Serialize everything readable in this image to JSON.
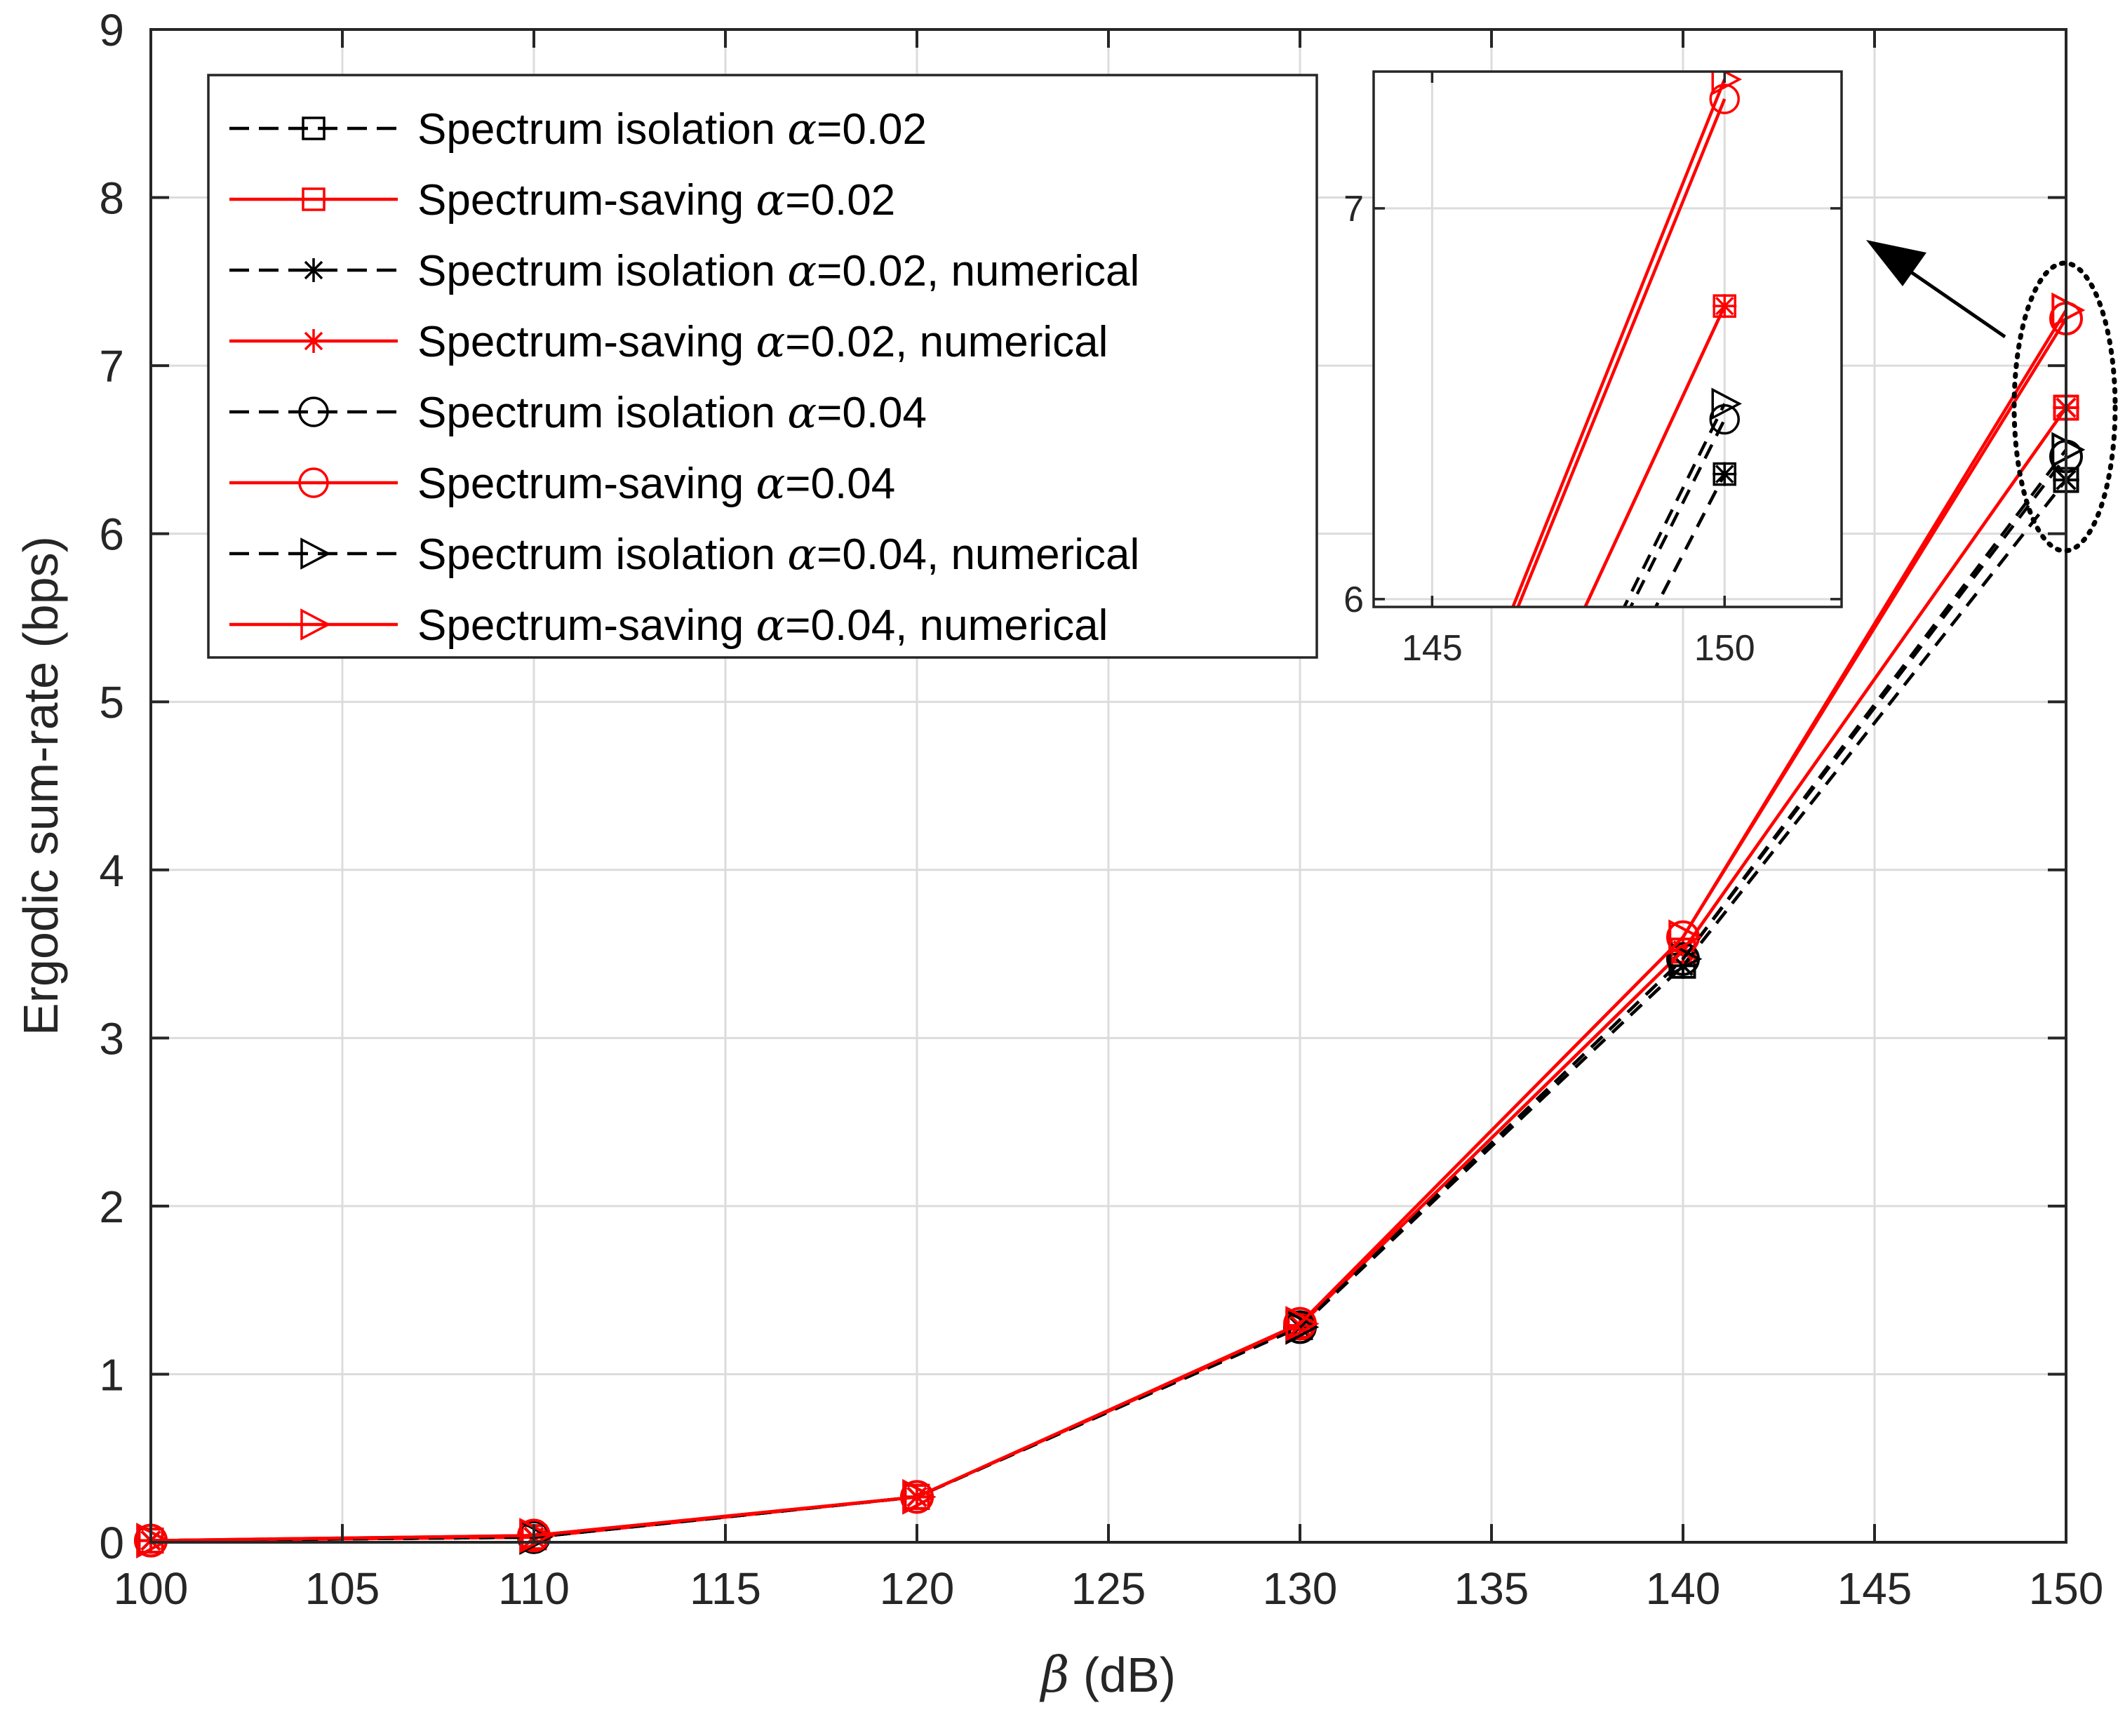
{
  "chart_data": {
    "type": "line",
    "xlabel": {
      "symbol": "β",
      "unit": " (dB)"
    },
    "ylabel": "Ergodic sum-rate (bps)",
    "xlim": [
      100,
      150
    ],
    "ylim": [
      0,
      9
    ],
    "xticks": [
      100,
      105,
      110,
      115,
      120,
      125,
      130,
      135,
      140,
      145,
      150
    ],
    "yticks": [
      0,
      1,
      2,
      3,
      4,
      5,
      6,
      7,
      8,
      9
    ],
    "grid": true,
    "legend_position": "top-left",
    "x": [
      100,
      110,
      120,
      130,
      140,
      150
    ],
    "series": [
      {
        "name": "Spectrum isolation",
        "alpha": "=0.02",
        "suffix": "",
        "color": "#000000",
        "linestyle": "dashed",
        "marker": "square",
        "values": [
          0.01,
          0.03,
          0.27,
          1.28,
          3.43,
          6.32
        ]
      },
      {
        "name": "Spectrum-saving",
        "alpha": "=0.02",
        "suffix": "",
        "color": "#ff0000",
        "linestyle": "solid",
        "marker": "square",
        "values": [
          0.01,
          0.03,
          0.27,
          1.29,
          3.52,
          6.75
        ]
      },
      {
        "name": "Spectrum isolation",
        "alpha": "=0.02",
        "suffix": ", numerical",
        "color": "#000000",
        "linestyle": "dashed",
        "marker": "asterisk",
        "values": [
          0.01,
          0.03,
          0.27,
          1.28,
          3.43,
          6.32
        ]
      },
      {
        "name": "Spectrum-saving",
        "alpha": "=0.02",
        "suffix": ", numerical",
        "color": "#ff0000",
        "linestyle": "solid",
        "marker": "asterisk",
        "values": [
          0.01,
          0.03,
          0.27,
          1.29,
          3.52,
          6.75
        ]
      },
      {
        "name": "Spectrum isolation",
        "alpha": "=0.04",
        "suffix": "",
        "color": "#000000",
        "linestyle": "dashed",
        "marker": "circle",
        "values": [
          0.01,
          0.03,
          0.27,
          1.28,
          3.47,
          6.46
        ]
      },
      {
        "name": "Spectrum-saving",
        "alpha": "=0.04",
        "suffix": "",
        "color": "#ff0000",
        "linestyle": "solid",
        "marker": "circle",
        "values": [
          0.01,
          0.04,
          0.27,
          1.3,
          3.6,
          7.28
        ]
      },
      {
        "name": "Spectrum isolation",
        "alpha": "=0.04",
        "suffix": ", numerical",
        "color": "#000000",
        "linestyle": "dashed",
        "marker": "triangle-right",
        "values": [
          0.01,
          0.03,
          0.27,
          1.28,
          3.47,
          6.5
        ]
      },
      {
        "name": "Spectrum-saving",
        "alpha": "=0.04",
        "suffix": ", numerical",
        "color": "#ff0000",
        "linestyle": "solid",
        "marker": "triangle-right",
        "values": [
          0.01,
          0.04,
          0.27,
          1.3,
          3.6,
          7.33
        ]
      }
    ],
    "inset": {
      "xlim": [
        144,
        152
      ],
      "ylim": [
        5.98,
        7.35
      ],
      "xticks": [
        145,
        150
      ],
      "yticks": [
        6,
        7
      ]
    },
    "annotation": "dotted ellipse around the points at beta = 150 dB with an arrow pointing to the zoomed inset"
  }
}
